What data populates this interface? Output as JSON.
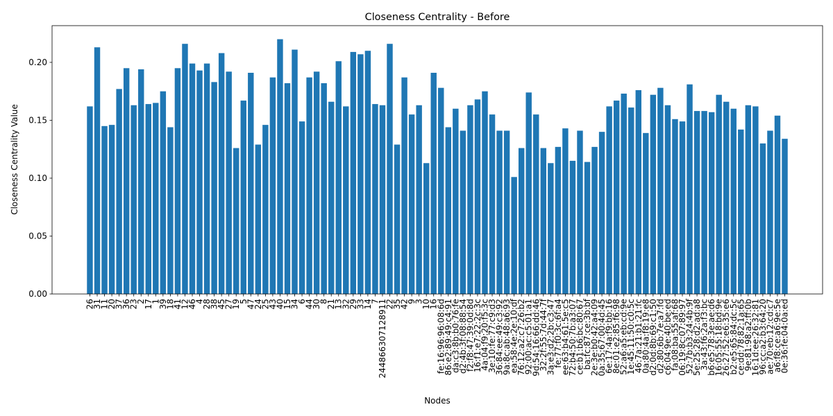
{
  "chart_data": {
    "type": "bar",
    "title": "Closeness Centrality - Before",
    "x_label": "Nodes",
    "y_label": "Closeness Centrality Value",
    "color": "#1f77b4",
    "categories": [
      "26",
      "31",
      "11",
      "20",
      "37",
      "36",
      "23",
      "2",
      "17",
      "1",
      "39",
      "18",
      "41",
      "12",
      "46",
      "4",
      "28",
      "38",
      "45",
      "27",
      "19",
      "5",
      "47",
      "24",
      "25",
      "43",
      "40",
      "15",
      "34",
      "6",
      "44",
      "30",
      "8",
      "21",
      "13",
      "32",
      "29",
      "33",
      "14",
      "7",
      "244866307128911",
      "22",
      "35",
      "42",
      "9",
      "3",
      "10",
      "16",
      "fe:16:96:96:08:6d",
      "86:e2:89:49:c4:91",
      "da:c3:8b:b0:76:fe",
      "d2:4b:3f:08:88:54",
      "f2:f8:47:39:0d:8d",
      "16:f1:e7:22:2c:3c",
      "4a:04:f9:20:f5:3c",
      "3e:10:fe:77:c9:d3",
      "36:84:ee:49:c3:92",
      "9a:8c:ab:48:a6:93",
      "ea:58:4e:2e:10:df",
      "76:12:a2:c7:26:b2",
      "92:00:ac:c5:01:a1",
      "9d:54:16:66:dd:46",
      "32:2f:55:7d:44:7f",
      "3a:e3:d2:2b:c3:47",
      "fe:77:f0:3c:6f:a4",
      "ee:63:b4:61:5e:c5",
      "72:b4:50:7b:a3:07",
      "ce:b1:b6:bc:80:67",
      "ba:fc:87:ce:3b:bf",
      "2e:3e:b0:42:a4:09",
      "0a:35:67:00:4d:45",
      "6e:17:4a:f9:bb:16",
      "8e:01:e2:85:f6:98",
      "52:a6:a5:eb:cd:9e",
      "1e:45:11:50:c0:5c",
      "46:7a:21:b1:21:fc",
      "0a:80:4a:f8:19:e8",
      "d2:0d:8b:69:c1:50",
      "d2:80:6b:7e:a7:fd",
      "c6:04:9e:40:be:ed",
      "fa:08:ba:55:af:68",
      "06:19:8c:07:89:97",
      "52:7b:b3:24:4b:9f",
      "5e:25:28:d2:ad:a8",
      "3a:43:f6:2a:f3:bc",
      "b6:e5:78:3e:ae:d6",
      "16:05:55:18:bd:9e",
      "26:27:52:e6:35:e6",
      "b2:e5:65:84:dc:5c",
      "ce:dd:78:82:1a:65",
      "9e:81:98:a2:ff:0b",
      "16:1d:ee:26:32:81",
      "96:cc:a2:b3:64:20",
      "ae:70:eb:12:cd:c7",
      "a6:f8:ce:a6:9e:5e",
      "0e:36:fe:04:0a:ed"
    ],
    "values": [
      0.162,
      0.213,
      0.145,
      0.146,
      0.177,
      0.195,
      0.163,
      0.194,
      0.164,
      0.165,
      0.175,
      0.144,
      0.195,
      0.216,
      0.199,
      0.193,
      0.199,
      0.183,
      0.208,
      0.192,
      0.126,
      0.167,
      0.191,
      0.129,
      0.146,
      0.187,
      0.22,
      0.182,
      0.211,
      0.149,
      0.187,
      0.192,
      0.182,
      0.166,
      0.201,
      0.162,
      0.209,
      0.207,
      0.21,
      0.164,
      0.163,
      0.216,
      0.129,
      0.187,
      0.155,
      0.163,
      0.113,
      0.191,
      0.178,
      0.144,
      0.16,
      0.141,
      0.163,
      0.168,
      0.175,
      0.155,
      0.141,
      0.141,
      0.101,
      0.126,
      0.174,
      0.155,
      0.126,
      0.113,
      0.127,
      0.143,
      0.115,
      0.141,
      0.114,
      0.127,
      0.14,
      0.162,
      0.167,
      0.173,
      0.161,
      0.176,
      0.139,
      0.172,
      0.178,
      0.163,
      0.151,
      0.149,
      0.181,
      0.158,
      0.158,
      0.157,
      0.172,
      0.166,
      0.16,
      0.142,
      0.163,
      0.162,
      0.13,
      0.141,
      0.154,
      0.134
    ],
    "ylim": [
      0,
      0.2317
    ],
    "yticks": [
      {
        "value": 0,
        "label": "0.00"
      },
      {
        "value": 0.05,
        "label": "0.05"
      },
      {
        "value": 0.1,
        "label": "0.10"
      },
      {
        "value": 0.15,
        "label": "0.15"
      },
      {
        "value": 0.2,
        "label": "0.20"
      }
    ]
  }
}
